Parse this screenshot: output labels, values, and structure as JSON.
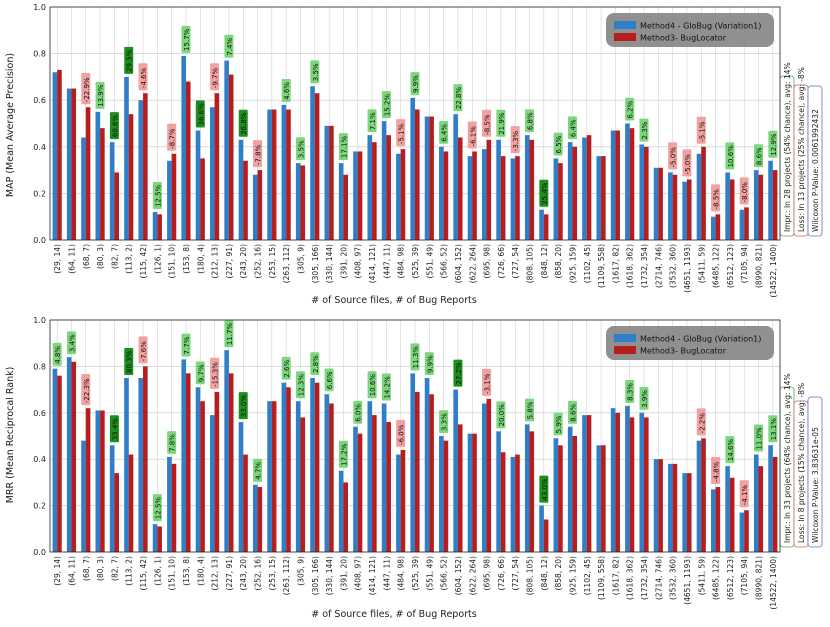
{
  "colors": {
    "series1": "#2f7fc8",
    "series2": "#b81d1d",
    "gain_label": "#7cd67c",
    "gain_label_strong": "#1d8f1d",
    "loss_label": "#f2a0a0",
    "legend_bg": "#8a8a8a",
    "grid": "#c8c8c8"
  },
  "chart_data": [
    {
      "type": "bar",
      "xlabel": "# of Source files, # of Bug Reports",
      "ylabel": "MAP (Mean Average Precision)",
      "ylim": [
        0,
        1.0
      ],
      "yticks": [
        "0.0",
        "0.2",
        "0.4",
        "0.6",
        "0.8",
        "1.0"
      ],
      "grid": true,
      "legend_position": "top-right",
      "categories": [
        "(29, 14)",
        "(64, 11)",
        "(68, 7)",
        "(80, 3)",
        "(82, 7)",
        "(113, 2)",
        "(115, 42)",
        "(126, 1)",
        "(151, 10)",
        "(153, 8)",
        "(180, 4)",
        "(212, 13)",
        "(227, 91)",
        "(243, 20)",
        "(252, 16)",
        "(253, 15)",
        "(263, 112)",
        "(305, 9)",
        "(305, 166)",
        "(330, 144)",
        "(391, 20)",
        "(408, 97)",
        "(414, 121)",
        "(447, 11)",
        "(484, 98)",
        "(525, 39)",
        "(551, 49)",
        "(566, 52)",
        "(604, 152)",
        "(622, 264)",
        "(695, 98)",
        "(726, 66)",
        "(727, 54)",
        "(808, 105)",
        "(848, 12)",
        "(858, 20)",
        "(925, 159)",
        "(1102, 45)",
        "(1109, 558)",
        "(1617, 82)",
        "(1618, 362)",
        "(1732, 354)",
        "(2714, 746)",
        "(3532, 360)",
        "(4651, 1193)",
        "(5411, 59)",
        "(6485, 122)",
        "(6512, 123)",
        "(7105, 94)",
        "(8990, 821)",
        "(14522, 1400)"
      ],
      "series": [
        {
          "name": "Method4 - GloBug (Variation1)",
          "values": [
            0.72,
            0.65,
            0.44,
            0.55,
            0.42,
            0.7,
            0.6,
            0.12,
            0.34,
            0.79,
            0.47,
            0.57,
            0.77,
            0.43,
            0.28,
            0.56,
            0.58,
            0.33,
            0.66,
            0.49,
            0.33,
            0.38,
            0.45,
            0.51,
            0.37,
            0.61,
            0.53,
            0.4,
            0.54,
            0.36,
            0.39,
            0.43,
            0.35,
            0.45,
            0.13,
            0.35,
            0.42,
            0.44,
            0.36,
            0.47,
            0.5,
            0.41,
            0.31,
            0.29,
            0.25,
            0.37,
            0.1,
            0.29,
            0.13,
            0.3,
            0.34
          ]
        },
        {
          "name": "Method3- BugLocator",
          "values": [
            0.73,
            0.65,
            0.57,
            0.48,
            0.29,
            0.54,
            0.63,
            0.11,
            0.37,
            0.68,
            0.35,
            0.63,
            0.71,
            0.34,
            0.3,
            0.56,
            0.56,
            0.32,
            0.63,
            0.49,
            0.28,
            0.38,
            0.42,
            0.45,
            0.39,
            0.56,
            0.53,
            0.38,
            0.44,
            0.38,
            0.43,
            0.36,
            0.36,
            0.43,
            0.11,
            0.33,
            0.4,
            0.45,
            0.36,
            0.47,
            0.48,
            0.4,
            0.31,
            0.28,
            0.26,
            0.4,
            0.11,
            0.26,
            0.14,
            0.28,
            0.3
          ]
        }
      ],
      "annotations": [
        "",
        "",
        "-22.9%",
        "13.9%",
        "60.6%",
        "29.5%",
        "-4.6%",
        "12.5%",
        "-8.7%",
        "15.7%",
        "36.6%",
        "-9.7%",
        "7.4%",
        "26.8%",
        "-7.8%",
        "",
        "4.6%",
        "3.5%",
        "3.5%",
        "",
        "17.1%",
        "",
        "7.1%",
        "15.2%",
        "-5.1%",
        "9.9%",
        "",
        "6.4%",
        "22.8%",
        "-6.1%",
        "-8.5%",
        "21.9%",
        "-3.3%",
        "6.8%",
        "25.4%",
        "6.5%",
        "6.4%",
        "",
        "",
        "",
        "6.2%",
        "2.3%",
        "",
        "-5.0%",
        "-5.0%",
        "-5.1%",
        "-8.5%",
        "10.6%",
        "-8.0%",
        "8.6%",
        "12.9%"
      ],
      "side_notes": [
        "Impr.: In 28 projects (54% chance), avg: 14%",
        "Loss: In 13 projects (25% chance), avg: -8%",
        "Wilcoxon P-Value: 0.0061992432"
      ]
    },
    {
      "type": "bar",
      "xlabel": "# of Source files, # of Bug Reports",
      "ylabel": "MRR (Mean Reciprocal Rank)",
      "ylim": [
        0,
        1.0
      ],
      "yticks": [
        "0.0",
        "0.2",
        "0.4",
        "0.6",
        "0.8",
        "1.0"
      ],
      "grid": true,
      "legend_position": "top-right",
      "categories": [
        "(29, 14)",
        "(64, 11)",
        "(68, 7)",
        "(80, 3)",
        "(82, 7)",
        "(113, 2)",
        "(115, 42)",
        "(126, 1)",
        "(151, 10)",
        "(153, 8)",
        "(180, 4)",
        "(212, 13)",
        "(227, 91)",
        "(243, 20)",
        "(252, 16)",
        "(253, 15)",
        "(263, 112)",
        "(305, 9)",
        "(305, 166)",
        "(330, 144)",
        "(391, 20)",
        "(408, 97)",
        "(414, 121)",
        "(447, 11)",
        "(484, 98)",
        "(525, 39)",
        "(551, 49)",
        "(566, 52)",
        "(604, 152)",
        "(622, 264)",
        "(695, 98)",
        "(726, 66)",
        "(727, 54)",
        "(808, 105)",
        "(848, 12)",
        "(858, 20)",
        "(925, 159)",
        "(1102, 45)",
        "(1109, 558)",
        "(1617, 82)",
        "(1618, 362)",
        "(1732, 354)",
        "(2714, 746)",
        "(3532, 360)",
        "(4651, 1193)",
        "(5411, 59)",
        "(6485, 122)",
        "(6512, 123)",
        "(7105, 94)",
        "(8990, 821)",
        "(14522, 1400)"
      ],
      "series": [
        {
          "name": "Method4 - GloBug (Variation1)",
          "values": [
            0.79,
            0.84,
            0.48,
            0.61,
            0.46,
            0.75,
            0.75,
            0.12,
            0.41,
            0.83,
            0.71,
            0.59,
            0.87,
            0.56,
            0.29,
            0.65,
            0.73,
            0.65,
            0.75,
            0.68,
            0.35,
            0.54,
            0.65,
            0.64,
            0.42,
            0.77,
            0.75,
            0.5,
            0.7,
            0.51,
            0.64,
            0.52,
            0.41,
            0.55,
            0.2,
            0.49,
            0.54,
            0.59,
            0.46,
            0.62,
            0.63,
            0.6,
            0.4,
            0.38,
            0.34,
            0.48,
            0.27,
            0.37,
            0.17,
            0.42,
            0.46
          ]
        },
        {
          "name": "Method3- BugLocator",
          "values": [
            0.76,
            0.82,
            0.62,
            0.61,
            0.34,
            0.42,
            0.8,
            0.11,
            0.38,
            0.77,
            0.65,
            0.69,
            0.77,
            0.42,
            0.28,
            0.65,
            0.71,
            0.58,
            0.73,
            0.64,
            0.3,
            0.51,
            0.59,
            0.56,
            0.44,
            0.69,
            0.68,
            0.48,
            0.55,
            0.51,
            0.66,
            0.43,
            0.42,
            0.52,
            0.14,
            0.46,
            0.5,
            0.59,
            0.46,
            0.6,
            0.58,
            0.58,
            0.4,
            0.38,
            0.34,
            0.49,
            0.28,
            0.32,
            0.18,
            0.37,
            0.41
          ]
        }
      ],
      "annotations": [
        "4.8%",
        "3.4%",
        "-22.3%",
        "",
        "33.4%",
        "80.3%",
        "-7.6%",
        "12.5%",
        "7.8%",
        "7.7%",
        "9.7%",
        "-15.3%",
        "11.7%",
        "33.0%",
        "4.7%",
        "",
        "2.6%",
        "12.3%",
        "2.8%",
        "6.6%",
        "17.2%",
        "6.0%",
        "10.6%",
        "14.2%",
        "-6.0%",
        "11.3%",
        "9.9%",
        "3.3%",
        "27.2%",
        "",
        "-3.1%",
        "20.0%",
        "",
        "5.8%",
        "43.0%",
        "5.9%",
        "8.6%",
        "",
        "",
        "",
        "8.3%",
        "3.9%",
        "",
        "",
        "",
        "-2.2%",
        "-4.8%",
        "14.6%",
        "-4.1%",
        "11.0%",
        "13.1%"
      ],
      "side_notes": [
        "Impr.: In 33 projects (64% chance), avg: 14%",
        "Loss: In 8 projects (15% chance), avg: -8%",
        "Wilcoxon P-Value: 3.83631e-05"
      ]
    }
  ]
}
